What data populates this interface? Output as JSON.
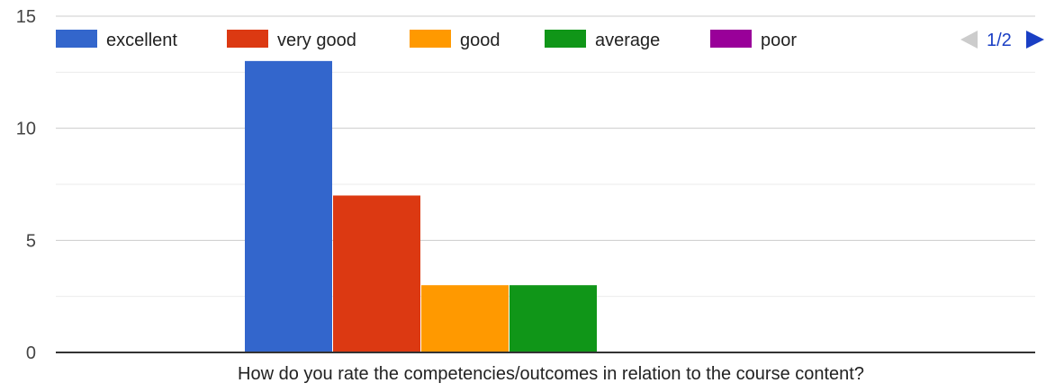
{
  "chart_data": {
    "type": "bar",
    "categories": [
      "How do you rate the competencies/outcomes in relation to the course content?"
    ],
    "series": [
      {
        "name": "excellent",
        "values": [
          13
        ],
        "color": "#3366cc"
      },
      {
        "name": "very good",
        "values": [
          7
        ],
        "color": "#dc3912"
      },
      {
        "name": "good",
        "values": [
          3
        ],
        "color": "#ff9900"
      },
      {
        "name": "average",
        "values": [
          3
        ],
        "color": "#109618"
      },
      {
        "name": "poor",
        "values": [
          0
        ],
        "color": "#990099"
      }
    ],
    "title": "",
    "xlabel": "",
    "ylabel": "",
    "ylim": [
      0,
      15
    ],
    "yticks": [
      0,
      5,
      10,
      15
    ],
    "grid": true,
    "legend_position": "top",
    "legend_page": "1/2"
  }
}
